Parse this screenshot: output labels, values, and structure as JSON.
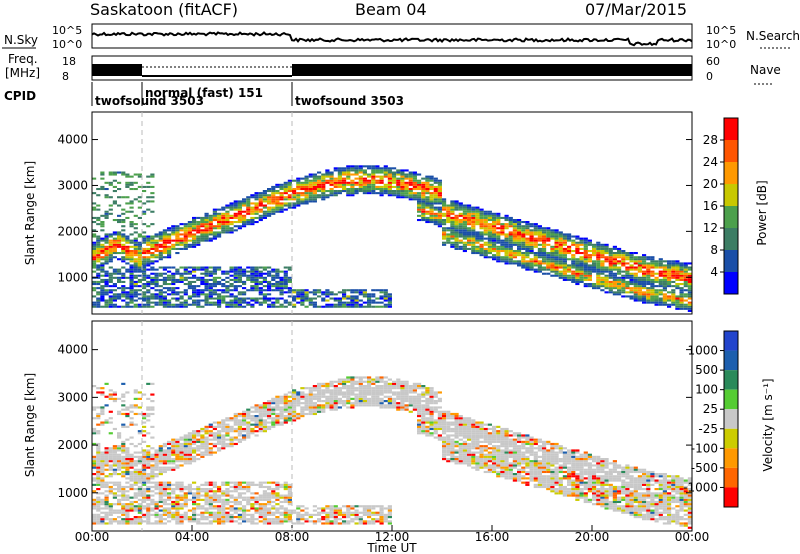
{
  "header": {
    "station": "Saskatoon (fitACF)",
    "beam": "Beam 04",
    "date": "07/Mar/2015"
  },
  "nsky_panel": {
    "left_label": "N.Sky",
    "right_label": "N.Search",
    "ticks_left": [
      "10^5",
      "10^0"
    ],
    "ticks_right": [
      "10^5",
      "10^0"
    ]
  },
  "freq_panel": {
    "left_label_1": "Freq.",
    "left_label_2": "[MHz]",
    "right_label": "Nave",
    "ticks_left": [
      "18",
      "8"
    ],
    "ticks_right": [
      "60",
      "0"
    ]
  },
  "cpid": {
    "label": "CPID",
    "segments": [
      {
        "name": "twofsound 3503",
        "start_h": 0,
        "end_h": 2
      },
      {
        "name": "normal (fast) 151",
        "start_h": 2,
        "end_h": 8
      },
      {
        "name": "twofsound 3503",
        "start_h": 8,
        "end_h": 24
      }
    ]
  },
  "colors": {
    "power": [
      "#0000ff",
      "#1a4fa8",
      "#3c7d64",
      "#4ca04c",
      "#c8c800",
      "#ff9900",
      "#ff5500",
      "#ff0000"
    ],
    "velocity": [
      "#ff0000",
      "#ff6600",
      "#ff9900",
      "#cccc00",
      "#c8c8c8",
      "#55cc33",
      "#2a8a5a",
      "#1d5fae",
      "#2244cc"
    ]
  },
  "chart_data": [
    {
      "type": "heatmap",
      "name": "power",
      "ylabel": "Slant Range [km]",
      "ylim": [
        200,
        4600
      ],
      "yticks": [
        1000,
        2000,
        3000,
        4000
      ],
      "xlim": [
        0,
        24
      ],
      "colorbar_label": "Power [dB]",
      "colorbar_ticks": [
        "4",
        "8",
        "12",
        "16",
        "20",
        "24",
        "28"
      ]
    },
    {
      "type": "heatmap",
      "name": "velocity",
      "ylabel": "Slant Range [km]",
      "ylim": [
        200,
        4600
      ],
      "yticks": [
        1000,
        2000,
        3000,
        4000
      ],
      "xlim": [
        0,
        24
      ],
      "xticks": [
        "00:00",
        "04:00",
        "08:00",
        "12:00",
        "16:00",
        "20:00",
        "00:00"
      ],
      "xlabel": "Time UT",
      "colorbar_label": "Velocity [m s⁻¹]",
      "colorbar_ticks": [
        "1000",
        "500",
        "100",
        "25",
        "-25",
        "-100",
        "-500",
        "-1000"
      ]
    }
  ]
}
